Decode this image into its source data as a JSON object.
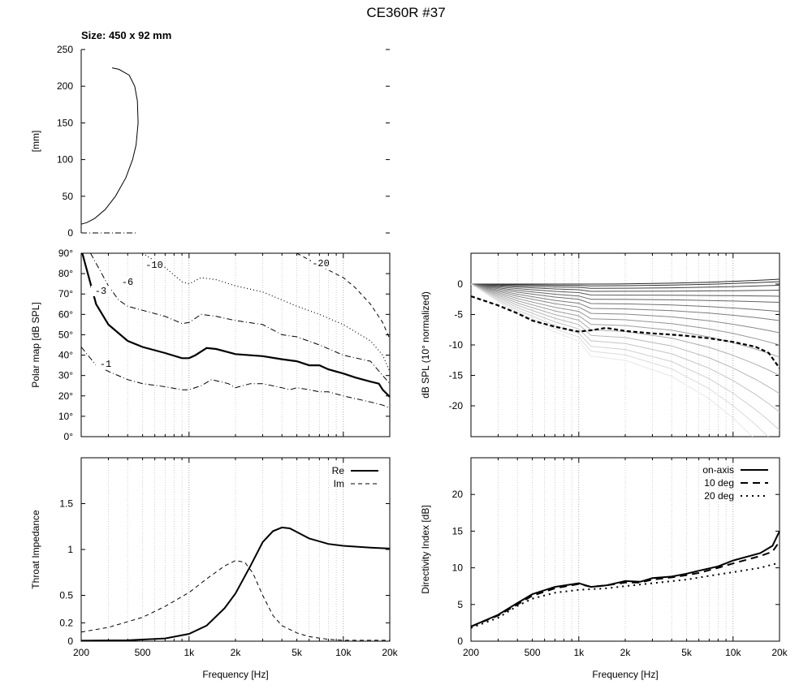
{
  "title": "CE360R #37",
  "size_label": "Size: 450 x 92 mm",
  "chart_data": [
    {
      "id": "profile",
      "type": "line",
      "ylabel": "[mm]",
      "xlabel": "",
      "ylim": [
        0,
        250
      ],
      "xlim": [
        0,
        450
      ],
      "yticks": [
        "0",
        "50",
        "100",
        "150",
        "200",
        "250"
      ],
      "series": [
        {
          "style": "solid",
          "x": [
            0,
            8,
            20,
            35,
            50,
            65,
            75,
            80,
            83,
            82,
            78,
            70,
            55,
            45
          ],
          "y": [
            12,
            14,
            20,
            32,
            50,
            75,
            100,
            120,
            150,
            180,
            200,
            215,
            223,
            225
          ]
        },
        {
          "style": "dashdot",
          "x": [
            0,
            82
          ],
          "y": [
            0,
            0
          ]
        }
      ]
    },
    {
      "id": "polar-map",
      "type": "line",
      "ylabel": "Polar map [dB SPL]",
      "xlabel": "",
      "xlim": [
        200,
        20000
      ],
      "ylim": [
        0,
        90
      ],
      "yticks": [
        "0°",
        "10°",
        "20°",
        "30°",
        "40°",
        "50°",
        "60°",
        "70°",
        "80°",
        "90°"
      ],
      "series": [
        {
          "name": "-1",
          "style": "dashdot",
          "x": [
            200,
            250,
            300,
            400,
            500,
            700,
            900,
            1000,
            1200,
            1400,
            1800,
            2000,
            2500,
            3000,
            4000,
            4500,
            5000,
            6000,
            7000,
            8000,
            10000,
            15000,
            18000,
            20000
          ],
          "y": [
            44,
            35,
            32,
            28,
            26,
            24.5,
            23,
            23,
            25,
            28,
            26,
            24,
            26,
            26,
            24,
            23,
            24,
            23,
            22,
            22,
            20,
            17,
            15.5,
            14
          ]
        },
        {
          "name": "-3",
          "style": "thick",
          "x": [
            200,
            250,
            300,
            400,
            500,
            700,
            900,
            1000,
            1100,
            1300,
            1500,
            2000,
            3000,
            4000,
            5000,
            6000,
            7000,
            8000,
            10000,
            12000,
            15000,
            17000,
            18000,
            20000
          ],
          "y": [
            92,
            65,
            55,
            47,
            44,
            41,
            38.5,
            38.5,
            40,
            43.5,
            43,
            40.5,
            39.5,
            38,
            37,
            35,
            35,
            33,
            31,
            29,
            27,
            26,
            23,
            19.5
          ]
        },
        {
          "name": "-6",
          "style": "dashdot",
          "x": [
            230,
            300,
            350,
            400,
            500,
            700,
            900,
            1000,
            1200,
            1500,
            2000,
            3000,
            4000,
            5000,
            7000,
            10000,
            15000,
            18000,
            20000
          ],
          "y": [
            90,
            74,
            67,
            64,
            62,
            59,
            55.5,
            56,
            60,
            59,
            57,
            55,
            50,
            49,
            45,
            40,
            37,
            30,
            26
          ]
        },
        {
          "name": "-10",
          "style": "dotted",
          "x": [
            500,
            700,
            900,
            1000,
            1200,
            1500,
            2000,
            3000,
            5000,
            7000,
            10000,
            15000,
            18000,
            20000
          ],
          "y": [
            90,
            83,
            76,
            75,
            78,
            77,
            74,
            71,
            64,
            60,
            55,
            47,
            40,
            32
          ]
        },
        {
          "name": "-20",
          "style": "dashed",
          "x": [
            5000,
            7000,
            10000,
            12000,
            15000,
            18000,
            20000
          ],
          "y": [
            90,
            84,
            78,
            73,
            65,
            56,
            48
          ]
        }
      ],
      "contour_labels": [
        "-1",
        "-3",
        "-6",
        "-10",
        "-20"
      ]
    },
    {
      "id": "normalized-spl",
      "type": "line",
      "ylabel": "dB SPL (10° normalized)",
      "xlabel": "",
      "xlim": [
        200,
        20000
      ],
      "ylim": [
        -25,
        5
      ],
      "yticks": [
        "-20",
        "-15",
        "-10",
        "-5",
        "0"
      ],
      "series": [
        {
          "style": "dashed-thick",
          "x": [
            200,
            300,
            400,
            500,
            700,
            900,
            1000,
            1200,
            1500,
            2000,
            3000,
            4000,
            5000,
            7000,
            10000,
            14000,
            17000,
            20000
          ],
          "y": [
            -2,
            -3.5,
            -4.8,
            -6,
            -7,
            -7.6,
            -7.8,
            -7.6,
            -7.2,
            -7.7,
            -8.1,
            -8.3,
            -8.5,
            -8.9,
            -9.5,
            -10.3,
            -11.3,
            -13.8
          ]
        }
      ],
      "family_end_values": [
        0.8,
        0.4,
        -0.2,
        -1,
        -2,
        -3,
        -4.5,
        -6,
        -8,
        -10,
        -12,
        -15,
        -18,
        -21,
        -24,
        -27,
        -30
      ],
      "family_mid_values": [
        0,
        -0.3,
        -0.7,
        -1.2,
        -1.8,
        -2.5,
        -3.2,
        -4,
        -4.8,
        -5.7,
        -6.6,
        -7.5,
        -8.4,
        -9.3,
        -10.2,
        -11,
        -11.8
      ]
    },
    {
      "id": "throat-impedance",
      "type": "line",
      "ylabel": "Throat Impedance",
      "xlabel": "Frequency [Hz]",
      "xlim": [
        200,
        20000
      ],
      "ylim": [
        0,
        2
      ],
      "xticks": [
        "200",
        "500",
        "1k",
        "2k",
        "5k",
        "10k",
        "20k"
      ],
      "yticks": [
        "0",
        "0.2",
        "0.5",
        "1",
        "1.5"
      ],
      "legend": "top-right",
      "series": [
        {
          "name": "Re",
          "style": "solid",
          "x": [
            200,
            400,
            700,
            1000,
            1300,
            1700,
            2000,
            2500,
            3000,
            3500,
            4000,
            4500,
            5000,
            6000,
            8000,
            10000,
            15000,
            20000
          ],
          "y": [
            0.005,
            0.01,
            0.03,
            0.08,
            0.17,
            0.36,
            0.52,
            0.82,
            1.08,
            1.2,
            1.24,
            1.23,
            1.19,
            1.12,
            1.06,
            1.04,
            1.02,
            1.01
          ]
        },
        {
          "name": "Im",
          "style": "dashed",
          "x": [
            200,
            300,
            500,
            700,
            1000,
            1300,
            1700,
            2000,
            2300,
            2600,
            3000,
            3500,
            4000,
            5000,
            6000,
            8000,
            10000,
            15000,
            20000
          ],
          "y": [
            0.1,
            0.15,
            0.26,
            0.38,
            0.53,
            0.68,
            0.82,
            0.88,
            0.86,
            0.74,
            0.5,
            0.28,
            0.17,
            0.09,
            0.05,
            0.02,
            0.01,
            0.01,
            0.01
          ]
        }
      ]
    },
    {
      "id": "directivity-index",
      "type": "line",
      "ylabel": "Directivity Index [dB]",
      "xlabel": "Frequency [Hz]",
      "xlim": [
        200,
        20000
      ],
      "ylim": [
        0,
        25
      ],
      "xticks": [
        "200",
        "500",
        "1k",
        "2k",
        "5k",
        "10k",
        "20k"
      ],
      "yticks": [
        "0",
        "5",
        "10",
        "15",
        "20"
      ],
      "legend": "top-right",
      "series": [
        {
          "name": "on-axis",
          "style": "solid",
          "x": [
            200,
            300,
            400,
            500,
            700,
            1000,
            1200,
            1500,
            2000,
            2500,
            3000,
            4000,
            5000,
            6000,
            8000,
            10000,
            15000,
            18000,
            20000
          ],
          "y": [
            2,
            3.6,
            5.2,
            6.4,
            7.4,
            7.9,
            7.4,
            7.6,
            8.2,
            8.1,
            8.6,
            8.8,
            9.2,
            9.6,
            10.2,
            11,
            12,
            13,
            15
          ]
        },
        {
          "name": "10 deg",
          "style": "dashed",
          "x": [
            200,
            300,
            400,
            500,
            700,
            1000,
            1200,
            1500,
            2000,
            2500,
            3000,
            4000,
            5000,
            6000,
            8000,
            10000,
            15000,
            18000,
            20000
          ],
          "y": [
            2,
            3.5,
            5,
            6.2,
            7.2,
            7.8,
            7.4,
            7.6,
            8,
            8,
            8.4,
            8.7,
            9,
            9.3,
            10,
            10.6,
            11.6,
            12.2,
            13.6
          ]
        },
        {
          "name": "20 deg",
          "style": "dotted",
          "x": [
            200,
            300,
            400,
            500,
            700,
            1000,
            1500,
            2000,
            3000,
            5000,
            7000,
            10000,
            15000,
            20000
          ],
          "y": [
            1.8,
            3.2,
            4.8,
            5.8,
            6.6,
            7,
            7.2,
            7.5,
            7.9,
            8.4,
            8.9,
            9.4,
            10,
            10.7
          ]
        }
      ]
    }
  ]
}
